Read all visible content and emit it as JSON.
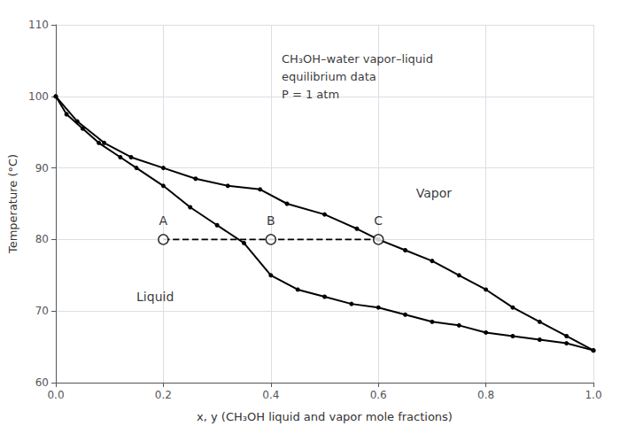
{
  "chart_data": {
    "type": "line",
    "xlabel": "x, y (CH₃OH liquid and vapor mole fractions)",
    "ylabel": "Temperature (°C)",
    "xlim": [
      0,
      1
    ],
    "ylim": [
      60,
      110
    ],
    "xticks": [
      {
        "value": 0,
        "label": "0.0"
      },
      0.2,
      0.4,
      0.6,
      0.8,
      {
        "value": 1.0,
        "label": "1.0"
      }
    ],
    "yticks": [
      60,
      70,
      80,
      90,
      100,
      110
    ],
    "grid": true,
    "series": [
      {
        "type": "line",
        "color": "black",
        "marker": "circle",
        "line_style": "solid",
        "x": [
          0.0,
          0.02,
          0.05,
          0.08,
          0.12,
          0.15,
          0.2,
          0.25,
          0.3,
          0.35,
          0.4,
          0.45,
          0.5,
          0.55,
          0.6,
          0.65,
          0.7,
          0.75,
          0.8,
          0.85,
          0.9,
          0.95,
          1.0
        ],
        "values": [
          100.0,
          97.5,
          95.5,
          93.5,
          91.5,
          90.0,
          87.5,
          84.5,
          82.0,
          79.5,
          75.0,
          73.0,
          72.0,
          71.0,
          70.5,
          69.5,
          68.5,
          68.0,
          67.0,
          66.5,
          66.0,
          65.5,
          64.5
        ]
      },
      {
        "type": "line",
        "color": "black",
        "marker": "circle",
        "line_style": "solid",
        "x": [
          0.0,
          0.04,
          0.09,
          0.14,
          0.2,
          0.26,
          0.32,
          0.38,
          0.43,
          0.5,
          0.56,
          0.6,
          0.65,
          0.7,
          0.75,
          0.8,
          0.85,
          0.9,
          0.95,
          1.0
        ],
        "values": [
          100.0,
          96.5,
          93.5,
          91.5,
          90.0,
          88.5,
          87.5,
          87.0,
          85.0,
          83.5,
          81.5,
          80.0,
          78.5,
          77.0,
          75.0,
          73.0,
          70.5,
          68.5,
          66.5,
          64.5
        ]
      },
      {
        "type": "line",
        "color": "black",
        "marker": "none",
        "line_style": "dashed",
        "x": [
          0.2,
          0.6
        ],
        "values": [
          80.0,
          80.0
        ]
      },
      {
        "type": "scatter",
        "color": "black",
        "marker": "open_circle",
        "x": [
          0.2,
          0.4,
          0.6
        ],
        "values": [
          80.0,
          80.0,
          80.0
        ],
        "labels": [
          "A",
          "B",
          "C"
        ]
      }
    ],
    "annotations": [
      {
        "text": "Vapor",
        "x": 0.67,
        "y": 86.5
      },
      {
        "text": "Liquid",
        "x": 0.15,
        "y": 72.0
      },
      {
        "text": "CH₃OH–water vapor–liquid\nequilibrium data\nP = 1 atm",
        "x": 0.42,
        "y": 106.5
      }
    ]
  }
}
